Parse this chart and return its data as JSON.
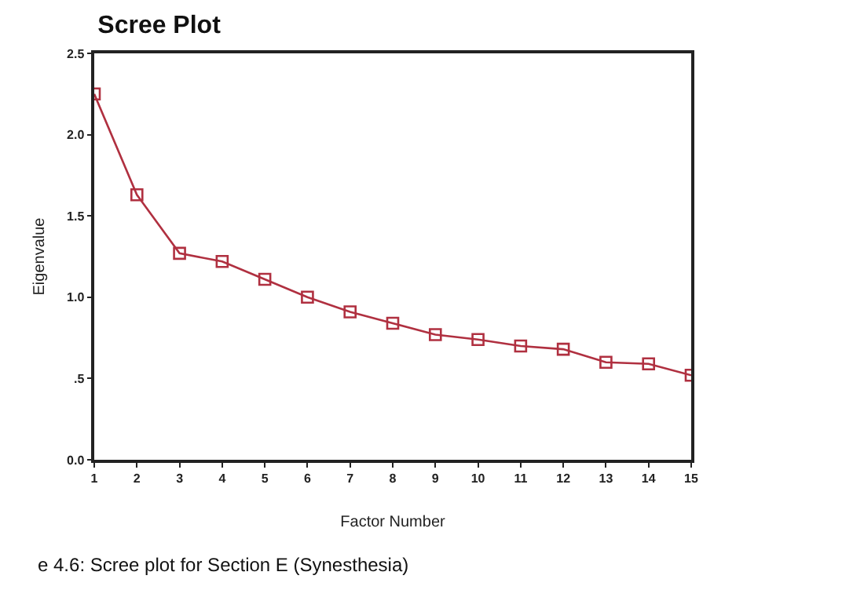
{
  "chart_data": {
    "type": "line",
    "title": "Scree Plot",
    "xlabel": "Factor Number",
    "ylabel": "Eigenvalue",
    "x": [
      1,
      2,
      3,
      4,
      5,
      6,
      7,
      8,
      9,
      10,
      11,
      12,
      13,
      14,
      15
    ],
    "series": [
      {
        "color": "#b03040",
        "values": [
          2.25,
          1.63,
          1.27,
          1.22,
          1.11,
          1.0,
          0.91,
          0.84,
          0.77,
          0.74,
          0.7,
          0.68,
          0.6,
          0.59,
          0.52
        ]
      }
    ],
    "xlim": [
      1,
      15
    ],
    "xticks": [
      1,
      2,
      3,
      4,
      5,
      6,
      7,
      8,
      9,
      10,
      11,
      12,
      13,
      14,
      15
    ],
    "ylim": [
      0,
      2.5
    ],
    "yticks": [
      {
        "value": 0,
        "label": "0.0"
      },
      {
        "value": 0.5,
        "label": ".5"
      },
      {
        "value": 1,
        "label": "1.0"
      },
      {
        "value": 1.5,
        "label": "1.5"
      },
      {
        "value": 2,
        "label": "2.0"
      },
      {
        "value": 2.5,
        "label": "2.5"
      }
    ],
    "marker": "square",
    "line_style": "solid",
    "grid": false,
    "annotations": [
      "e 4.6: Scree plot for Section E (Synesthesia)"
    ]
  }
}
